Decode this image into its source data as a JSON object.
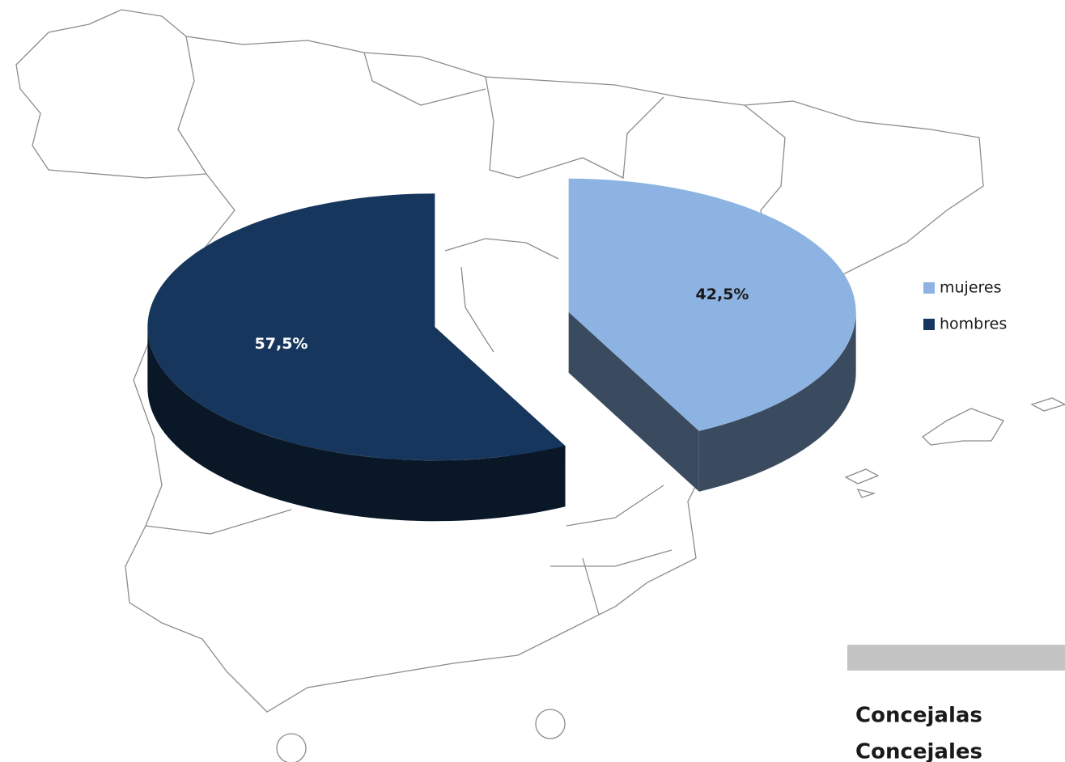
{
  "chart_data": {
    "type": "pie3d",
    "categories": [
      "mujeres",
      "hombres"
    ],
    "values": [
      42.5,
      57.5
    ],
    "value_labels": [
      "42,5%",
      "57,5%"
    ],
    "colors": [
      "#8db3e2",
      "#17365d"
    ],
    "label_colors": [
      "#1a1a1a",
      "#ffffff"
    ],
    "legend": "right",
    "annotations": [
      "Concejalas",
      "Concejales"
    ]
  }
}
